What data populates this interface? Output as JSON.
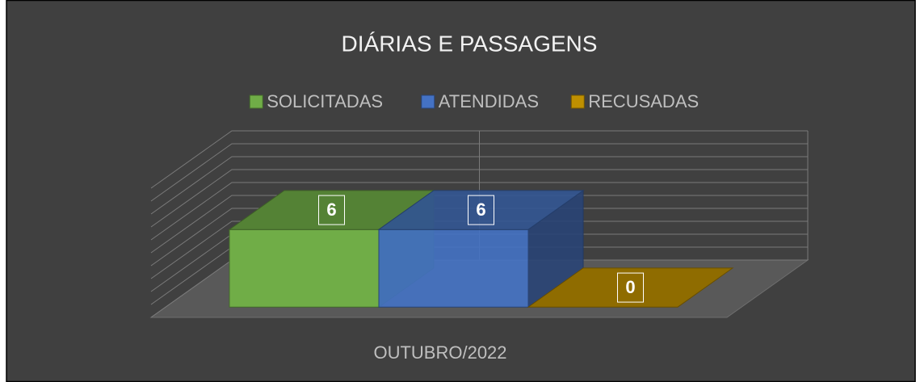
{
  "chart_data": {
    "type": "bar3d",
    "title": "DIÁRIAS E PASSAGENS",
    "categories": [
      "OUTUBRO/2022"
    ],
    "series": [
      {
        "name": "SOLICITADAS",
        "color": "#70ad47",
        "values": [
          6
        ]
      },
      {
        "name": "ATENDIDAS",
        "color": "#4472c4",
        "values": [
          6
        ]
      },
      {
        "name": "RECUSADAS",
        "color": "#bf9000",
        "values": [
          0
        ]
      }
    ],
    "ylim": [
      0,
      10
    ],
    "yticks": [
      0,
      1,
      2,
      3,
      4,
      5,
      6,
      7,
      8,
      9,
      10
    ],
    "grid": true,
    "legend": "top"
  }
}
